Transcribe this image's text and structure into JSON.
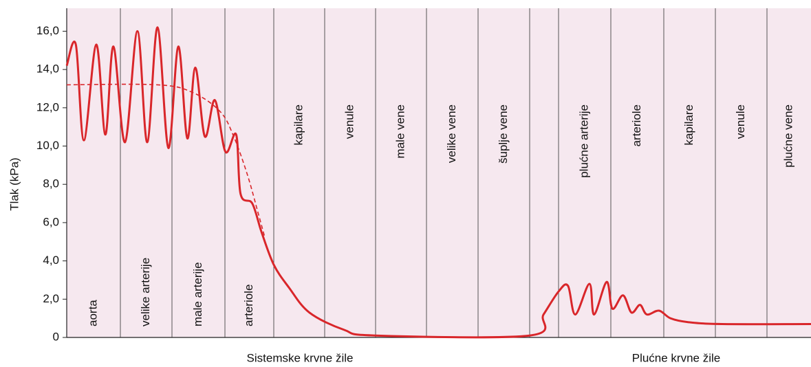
{
  "chart_data": {
    "type": "line",
    "ylabel": "Tlak (kPa)",
    "categories": [
      "aorta",
      "velike arterije",
      "male arterije",
      "arteriole",
      "kapilare",
      "venule",
      "male vene",
      "velike vene",
      "šuplje vene",
      null,
      "plućne arterije",
      "arteriole",
      "kapilare",
      "venule",
      "plućne vene"
    ],
    "groups": [
      "Sistemske krvne žile",
      "Plućne krvne žile"
    ],
    "ylim": [
      0,
      17.2
    ],
    "yticks": [
      0,
      {
        "value": 2,
        "label": "2,0"
      },
      {
        "value": 4,
        "label": "4,0"
      },
      {
        "value": 6,
        "label": "6,0"
      },
      {
        "value": 8,
        "label": "8,0"
      },
      {
        "value": 10,
        "label": "10,0"
      },
      {
        "value": 12,
        "label": "12,0"
      },
      {
        "value": 14,
        "label": "14,0"
      },
      {
        "value": 16,
        "label": "16,0"
      }
    ],
    "series": [
      {
        "color": "#d9262a",
        "dashed": false,
        "x": [
          0,
          0.17,
          0.32,
          0.55,
          0.72,
          0.87,
          1.09,
          1.33,
          1.52,
          1.72,
          1.93,
          2.12,
          2.29,
          2.44,
          2.62,
          2.81,
          3.01,
          3.23,
          3.32,
          3.56,
          3.75,
          4.0,
          4.3,
          4.7,
          5.38,
          6.0,
          9.0,
          9.48,
          10.0,
          10.18,
          10.32,
          10.59,
          10.68,
          10.92,
          11.03,
          11.23,
          11.39,
          11.55,
          11.68,
          11.91,
          12.13,
          12.47,
          13.13,
          15.0
        ],
        "values": [
          14.2,
          15.3,
          10.3,
          15.3,
          10.6,
          15.2,
          10.2,
          16.0,
          10.2,
          16.2,
          9.9,
          15.2,
          10.4,
          14.1,
          10.5,
          12.4,
          9.7,
          10.6,
          7.5,
          7.0,
          5.5,
          3.8,
          2.6,
          1.3,
          0.4,
          0.1,
          0.1,
          1.2,
          2.4,
          2.7,
          1.2,
          2.8,
          1.2,
          2.9,
          1.5,
          2.2,
          1.3,
          1.7,
          1.2,
          1.4,
          1.0,
          0.8,
          0.7,
          0.7
        ]
      },
      {
        "color": "#d9262a",
        "dashed": true,
        "x": [
          0,
          1.72,
          2.39,
          2.91,
          3.18,
          3.46,
          3.68,
          3.82
        ],
        "values": [
          13.2,
          13.2,
          12.8,
          11.8,
          10.5,
          8.5,
          6.5,
          5.2
        ]
      }
    ]
  }
}
